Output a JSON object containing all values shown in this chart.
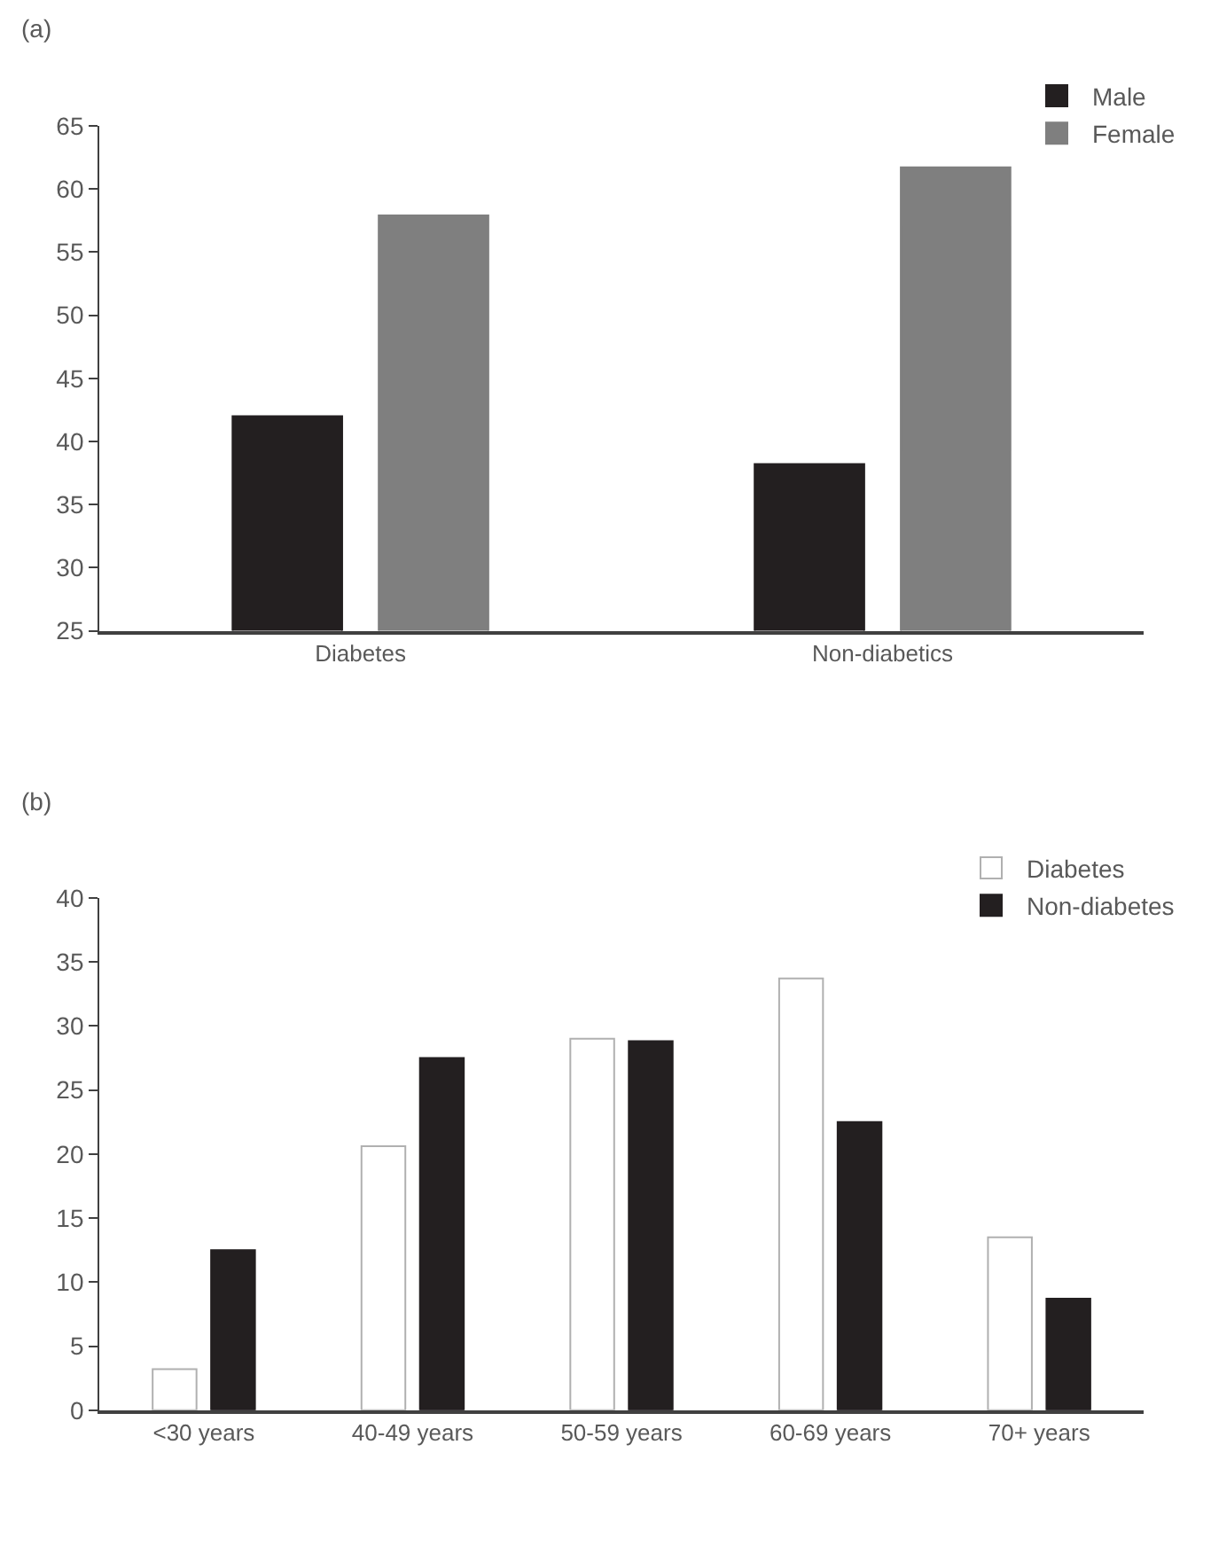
{
  "chart_data": [
    {
      "type": "bar",
      "title": "(a)",
      "categories": [
        "Diabetes",
        "Non-diabetics"
      ],
      "series": [
        {
          "name": "Male",
          "color": "#231f20",
          "values": [
            42.0,
            38.2
          ]
        },
        {
          "name": "Female",
          "color": "#7f7f7f",
          "values": [
            57.9,
            61.7
          ]
        }
      ],
      "ylim": [
        25,
        65
      ],
      "yticks": [
        25,
        30,
        35,
        40,
        45,
        50,
        55,
        60,
        65
      ],
      "legend": "top right"
    },
    {
      "type": "bar",
      "title": "(b)",
      "categories": [
        "<30 years",
        "40-49 years",
        "50-59 years",
        "60-69 years",
        "70+ years"
      ],
      "series": [
        {
          "name": "Diabetes",
          "color": "#ffffff",
          "values": [
            3.2,
            20.6,
            29.0,
            33.7,
            13.5
          ]
        },
        {
          "name": "Non-diabetes",
          "color": "#231f20",
          "values": [
            12.5,
            27.5,
            28.8,
            22.5,
            8.7
          ]
        }
      ],
      "ylim": [
        0,
        40
      ],
      "yticks": [
        0,
        5,
        10,
        15,
        20,
        25,
        30,
        35,
        40
      ],
      "legend": "top right"
    }
  ]
}
